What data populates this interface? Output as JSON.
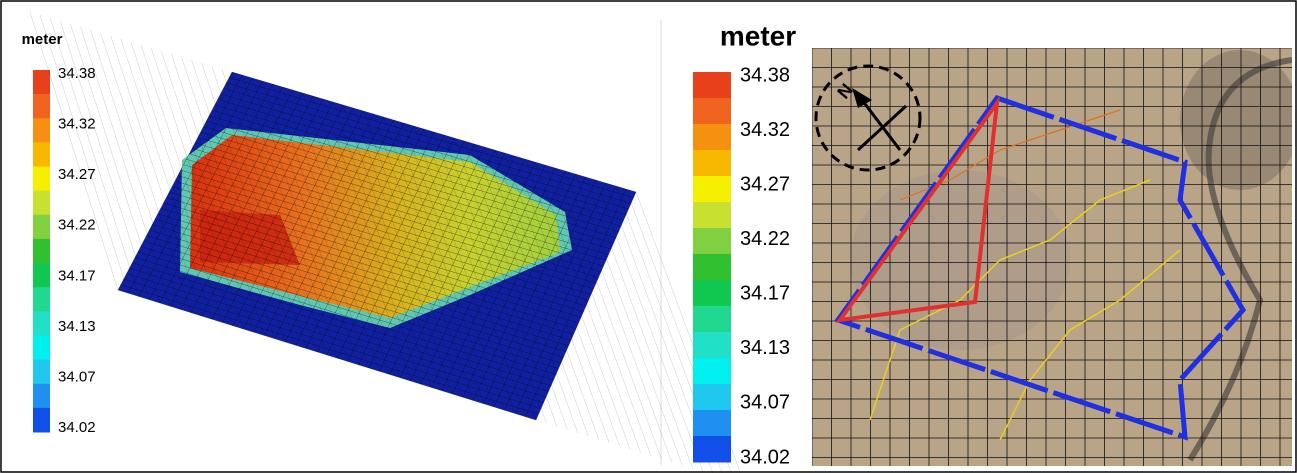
{
  "left_panel": {
    "legend": {
      "title": "meter",
      "labels": [
        "34.38",
        "34.32",
        "34.27",
        "34.22",
        "34.17",
        "34.13",
        "34.07",
        "34.02"
      ]
    }
  },
  "right_panel": {
    "legend": {
      "title": "meter",
      "labels": [
        "34.38",
        "34.32",
        "34.27",
        "34.22",
        "34.17",
        "34.13",
        "34.07",
        "34.02"
      ]
    },
    "north_label": "N"
  }
}
